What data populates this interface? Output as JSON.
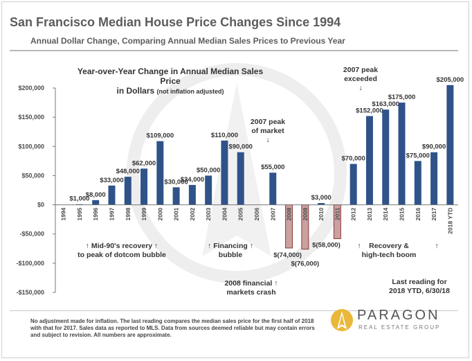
{
  "header": {
    "title": "San Francisco Median House Price Changes Since 1994",
    "subtitle": "Annual Dollar Change, Comparing Annual Median Sales Prices to Previous Year"
  },
  "chart_header": {
    "line1": "Year-over-Year Change in Annual Median Sales Price",
    "line2": "in Dollars",
    "line2_note": "(not inflation adjusted)"
  },
  "chart_data": {
    "type": "bar",
    "categories": [
      "1994",
      "1995",
      "1996",
      "1997",
      "1998",
      "1999",
      "2000",
      "2001",
      "2002",
      "2003",
      "2004",
      "2005",
      "2006",
      "2007",
      "2008",
      "2009",
      "2010",
      "2011",
      "2012",
      "2013",
      "2014",
      "2015",
      "2016",
      "2017",
      "2018 YTD"
    ],
    "values": [
      null,
      1000,
      8000,
      33000,
      48000,
      62000,
      109000,
      30000,
      34000,
      50000,
      110000,
      90000,
      null,
      55000,
      -74000,
      -76000,
      3000,
      -58000,
      70000,
      152000,
      163000,
      175000,
      75000,
      90000,
      205000
    ],
    "data_labels": [
      "",
      "$1,000",
      "$8,000",
      "$33,000",
      "$48,000",
      "$62,000",
      "$109,000",
      "$30,000",
      "$34,000",
      "$50,000",
      "$110,000",
      "$90,000",
      "",
      "$55,000",
      "$(74,000)",
      "$(76,000)",
      "$3,000",
      "$(58,000)",
      "$70,000",
      "$152,000",
      "$163,000",
      "$175,000",
      "$75,000",
      "$90,000",
      "$205,000"
    ],
    "ylim": [
      -150000,
      200000
    ],
    "yticks": [
      200000,
      150000,
      100000,
      50000,
      0,
      -50000,
      -100000,
      -150000
    ],
    "ytick_labels": [
      "$200,000",
      "$150,000",
      "$100,000",
      "$50,000",
      "$0",
      "-$50,000",
      "-$100,000",
      "-$150,000"
    ],
    "colors": {
      "positive": "#2f5389",
      "negative_fill": "#caa0a0",
      "negative_edge": "#8a3a3a"
    }
  },
  "annotations": {
    "peak2007": [
      "2007 peak",
      "of market",
      "↓"
    ],
    "peak_exceeded": [
      "2007 peak",
      "exceeded",
      "↓"
    ],
    "mid90s": [
      "↑ Mid-90's recovery ↑",
      "to peak of dotcom bubble"
    ],
    "financing": [
      "↑ Financing ↑",
      "bubble"
    ],
    "crash": [
      "2008 financial ↑",
      "markets crash"
    ],
    "recovery": [
      "Recovery &",
      "high-tech boom"
    ],
    "recovery_arrow_left": "↑",
    "recovery_arrow_right": "↑",
    "last_reading": [
      "Last reading for",
      "2018 YTD, 6/30/18"
    ]
  },
  "footnote": "No adjustment made for inflation. The last reading compares the median sales price for the first half of 2018 with that for 2017. Sales data as reported to MLS. Data from sources deemed reliable but may contain errors and subject to revision. All numbers are approximate.",
  "logo": {
    "name": "PARAGON",
    "tagline": "REAL ESTATE GROUP"
  }
}
